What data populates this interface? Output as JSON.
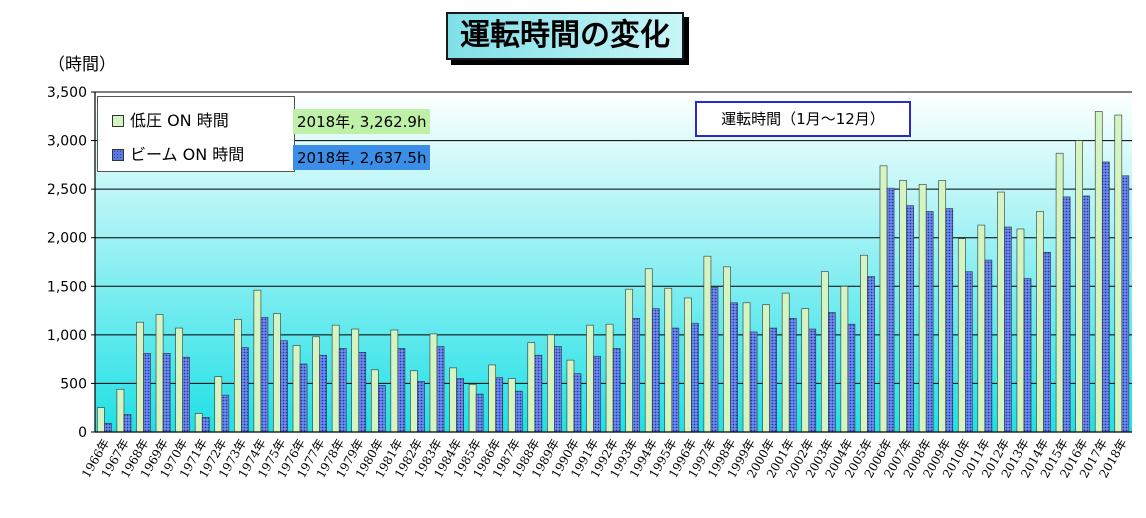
{
  "chart_data": {
    "type": "bar",
    "title": "運転時間の変化",
    "ylabel": "（時間）",
    "ylim": [
      0,
      3500
    ],
    "yticks": [
      "0",
      "500",
      "1,000",
      "1,500",
      "2,000",
      "2,500",
      "3,000",
      "3,500"
    ],
    "grid": true,
    "legend_position": "top-left",
    "categories": [
      "1966年",
      "1967年",
      "1968年",
      "1969年",
      "1970年",
      "1971年",
      "1972年",
      "1973年",
      "1974年",
      "1975年",
      "1976年",
      "1977年",
      "1978年",
      "1979年",
      "1980年",
      "1981年",
      "1982年",
      "1983年",
      "1984年",
      "1985年",
      "1986年",
      "1987年",
      "1988年",
      "1989年",
      "1990年",
      "1991年",
      "1992年",
      "1993年",
      "1994年",
      "1995年",
      "1996年",
      "1997年",
      "1998年",
      "1999年",
      "2000年",
      "2001年",
      "2002年",
      "2003年",
      "2004年",
      "2005年",
      "2006年",
      "2007年",
      "2008年",
      "2009年",
      "2010年",
      "2011年",
      "2012年",
      "2013年",
      "2014年",
      "2015年",
      "2016年",
      "2017年",
      "2018年"
    ],
    "series": [
      {
        "name": "低圧 ON 時間",
        "color": "#d4f5c2",
        "values": [
          250,
          440,
          1130,
          1210,
          1070,
          190,
          570,
          1160,
          1460,
          1220,
          890,
          980,
          1100,
          1060,
          640,
          1050,
          630,
          1010,
          660,
          490,
          690,
          550,
          920,
          1000,
          740,
          1100,
          1110,
          1470,
          1680,
          1480,
          1380,
          1810,
          1700,
          1330,
          1310,
          1430,
          1270,
          1650,
          1500,
          1820,
          2740,
          2590,
          2550,
          2590,
          1990,
          2130,
          2470,
          2090,
          2270,
          2870,
          3000,
          3300,
          3262.9
        ]
      },
      {
        "name": "ビーム ON 時間",
        "color": "#5a7ae0",
        "values": [
          90,
          180,
          810,
          810,
          770,
          150,
          380,
          870,
          1180,
          940,
          700,
          790,
          860,
          820,
          480,
          860,
          520,
          880,
          550,
          390,
          560,
          420,
          790,
          880,
          600,
          780,
          860,
          1170,
          1270,
          1070,
          1120,
          1490,
          1330,
          1030,
          1070,
          1170,
          1060,
          1230,
          1110,
          1600,
          2510,
          2330,
          2270,
          2300,
          1650,
          1770,
          2110,
          1580,
          1850,
          2420,
          2430,
          2780,
          2637.5
        ]
      }
    ],
    "annotations": {
      "low_latest": "2018年, 3,262.9h",
      "beam_latest": "2018年, 2,637.5h",
      "period": "運転時間（1月～12月）"
    }
  },
  "colors": {
    "plot_bg_top": "#ffffff",
    "plot_bg_bottom": "#1fe0e6",
    "low_bar": "#d4f5c2",
    "beam_bar": "#5a7ae0",
    "low_annotation_bg": "#bff0a8",
    "beam_annotation_bg": "#3a8ee8"
  }
}
